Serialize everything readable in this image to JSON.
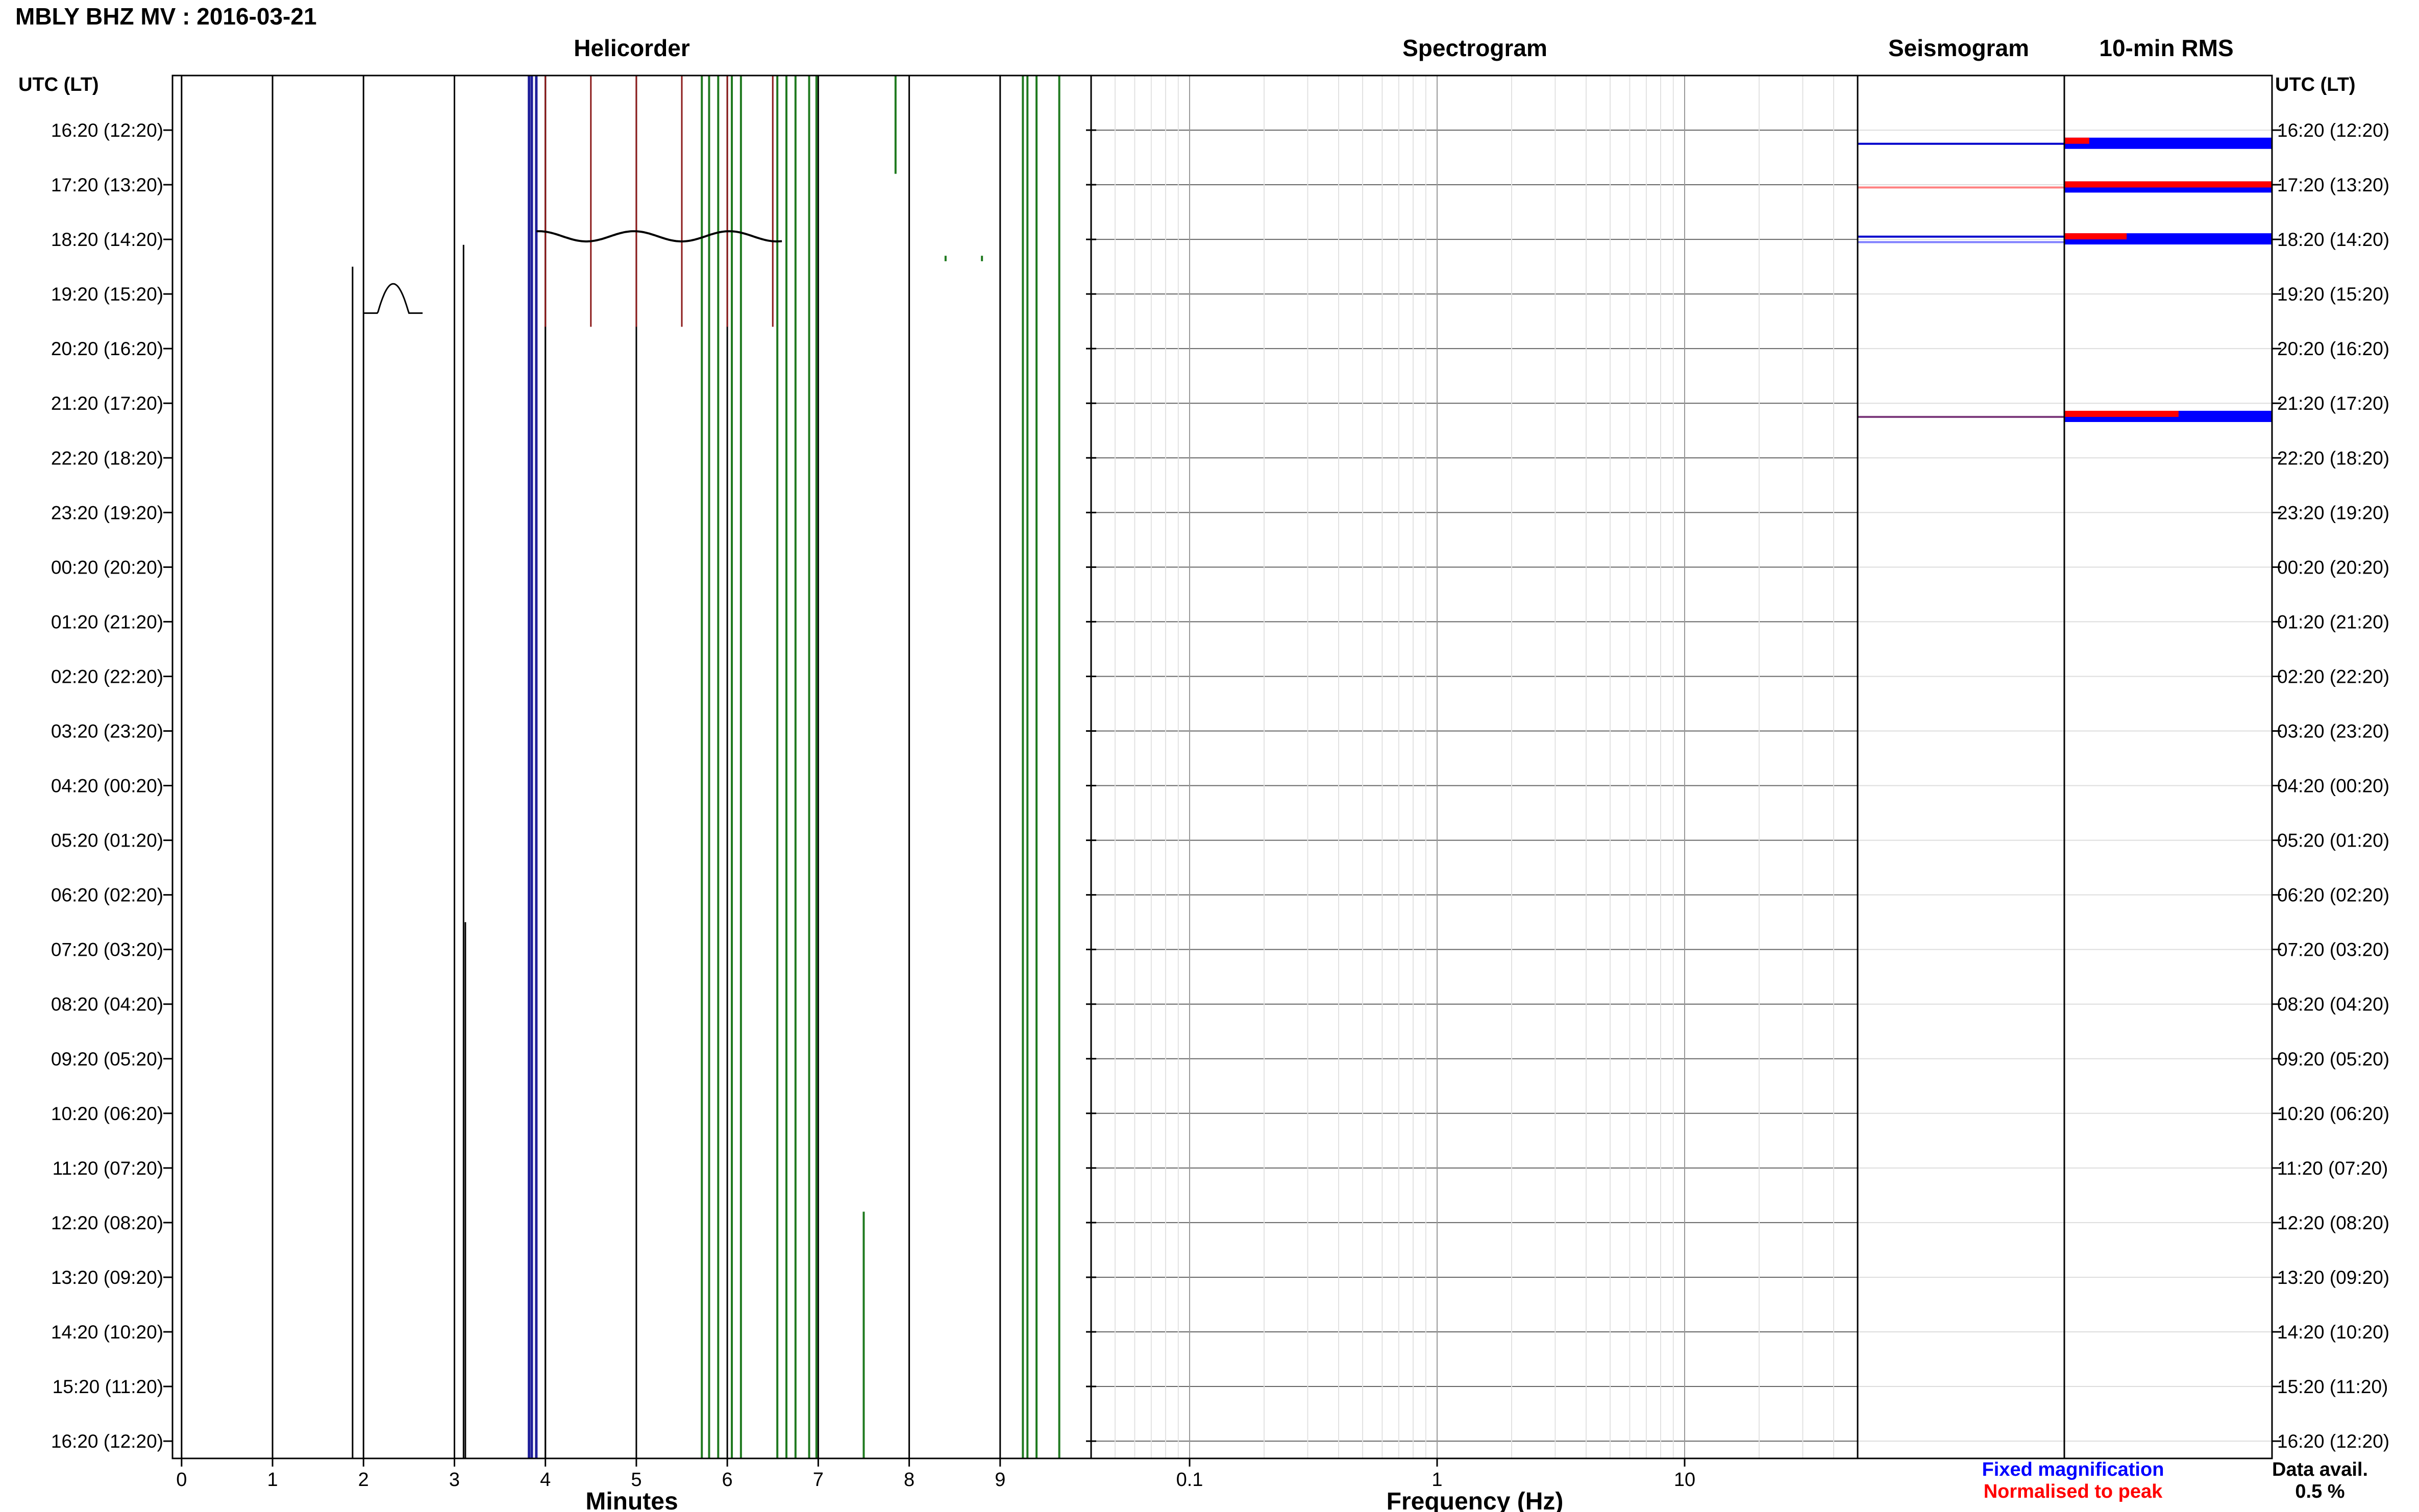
{
  "chart_data": {
    "type": "line",
    "title": "MBLY BHZ MV : 2016-03-21",
    "panel_titles": {
      "helicorder": "Helicorder",
      "spectrogram": "Spectrogram",
      "seismogram": "Seismogram",
      "rms": "10-min RMS"
    },
    "time_axis_label": "UTC (LT)",
    "time_labels": [
      "16:20 (12:20)",
      "17:20 (13:20)",
      "18:20 (14:20)",
      "19:20 (15:20)",
      "20:20 (16:20)",
      "21:20 (17:20)",
      "22:20 (18:20)",
      "23:20 (19:20)",
      "00:20 (20:20)",
      "01:20 (21:20)",
      "02:20 (22:20)",
      "03:20 (23:20)",
      "04:20 (00:20)",
      "05:20 (01:20)",
      "06:20 (02:20)",
      "07:20 (03:20)",
      "08:20 (04:20)",
      "09:20 (05:20)",
      "10:20 (06:20)",
      "11:20 (07:20)",
      "12:20 (08:20)",
      "13:20 (09:20)",
      "14:20 (10:20)",
      "15:20 (11:20)",
      "16:20 (12:20)"
    ],
    "helicorder": {
      "xlabel": "Minutes",
      "xlim": [
        -0.1,
        10.0
      ],
      "x_ticks": [
        "0",
        "1",
        "2",
        "3",
        "4",
        "5",
        "6",
        "7",
        "8",
        "9"
      ],
      "traces": [
        {
          "color": "#000000",
          "x_min": [
            0.0,
            1.0,
            2.0,
            3.0,
            4.0,
            5.0,
            6.0,
            7.0,
            8.0,
            9.0
          ],
          "from_row": 0,
          "to_row": 24.5
        },
        {
          "color": "#000000",
          "x_min": [
            1.88
          ],
          "from_row": 2.5,
          "to_row": 24.5
        },
        {
          "color": "#000000",
          "x_min": [
            3.12
          ],
          "from_row": 14.5,
          "to_row": 24.5
        },
        {
          "color": "#000000",
          "x_min": [
            3.1
          ],
          "from_row": 2.1,
          "to_row": 24.5
        },
        {
          "color": "#000000",
          "x_min": [
            4.0
          ],
          "from_row": 0,
          "to_row": 24.5
        },
        {
          "color": "#1f1f9a",
          "x_min": [
            3.82,
            3.85,
            3.9
          ],
          "from_row": 0,
          "to_row": 24.5
        },
        {
          "color": "#8b1a1a",
          "x_min": [
            4.0,
            4.5,
            5.0,
            5.5,
            6.0,
            6.5
          ],
          "from_row": 0,
          "to_row": 3.6
        },
        {
          "color": "#1f7a1f",
          "x_min": [
            5.72,
            5.8,
            5.9,
            6.05,
            6.15,
            6.55,
            6.65,
            6.75,
            6.9,
            6.98,
            9.25,
            9.3,
            9.4,
            9.65
          ],
          "from_row": 0,
          "to_row": 24.5
        },
        {
          "color": "#1f7a1f",
          "x_min": [
            7.5
          ],
          "from_row": 19.8,
          "to_row": 24.5
        },
        {
          "color": "#1f7a1f",
          "x_min": [
            8.4,
            8.8
          ],
          "from_row": 2.3,
          "to_row": 2.4
        },
        {
          "color": "#1f7a1f",
          "x_min": [
            7.85
          ],
          "from_row": 0,
          "to_row": 0.8
        }
      ]
    },
    "spectrogram": {
      "xlabel": "Frequency (Hz)",
      "xscale": "log",
      "xlim": [
        0.04,
        50
      ],
      "x_ticks": [
        "0.1",
        "1",
        "10"
      ]
    },
    "seismogram": {
      "events": [
        {
          "row": 0.25,
          "color": "#0000cc"
        },
        {
          "row": 1.05,
          "color": "#ff8080"
        },
        {
          "row": 1.95,
          "color": "#0000cc"
        },
        {
          "row": 2.05,
          "color": "#8080ff"
        },
        {
          "row": 5.25,
          "color": "#7f3f7f"
        }
      ]
    },
    "rms": {
      "bars": [
        {
          "row": 0.25,
          "fixed_fraction": 1.0,
          "normalised_fraction": 0.12
        },
        {
          "row": 1.05,
          "fixed_fraction": 1.0,
          "normalised_fraction": 1.0
        },
        {
          "row": 2.0,
          "fixed_fraction": 1.0,
          "normalised_fraction": 0.3
        },
        {
          "row": 5.25,
          "fixed_fraction": 1.0,
          "normalised_fraction": 0.55
        }
      ]
    },
    "legend": {
      "fixed": "Fixed magnification",
      "normalised": "Normalised to peak",
      "placement": "bottom-right",
      "fixed_color": "#0000ff",
      "normalised_color": "#ff0000"
    },
    "data_avail_label": "Data avail.",
    "data_avail_value": "0.5 %"
  }
}
